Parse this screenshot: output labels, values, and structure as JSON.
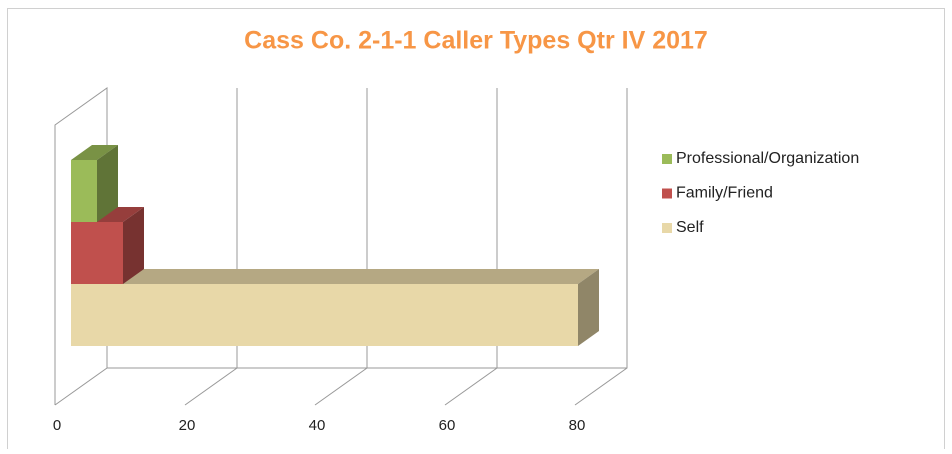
{
  "chart_data": {
    "type": "bar3d",
    "orientation": "horizontal",
    "title": "Cass Co. 2-1-1 Caller Types Qtr IV 2017",
    "series": [
      {
        "name": "Professional/Organization",
        "color": "#9bbb59",
        "values": [
          4
        ]
      },
      {
        "name": "Family/Friend",
        "color": "#c0504d",
        "values": [
          8
        ]
      },
      {
        "name": "Self",
        "color": "#e8d8a8",
        "values": [
          78
        ]
      }
    ],
    "xlim": [
      0,
      80
    ],
    "xticks": [
      0,
      20,
      40,
      60,
      80
    ],
    "grid": true,
    "legend": "right"
  }
}
